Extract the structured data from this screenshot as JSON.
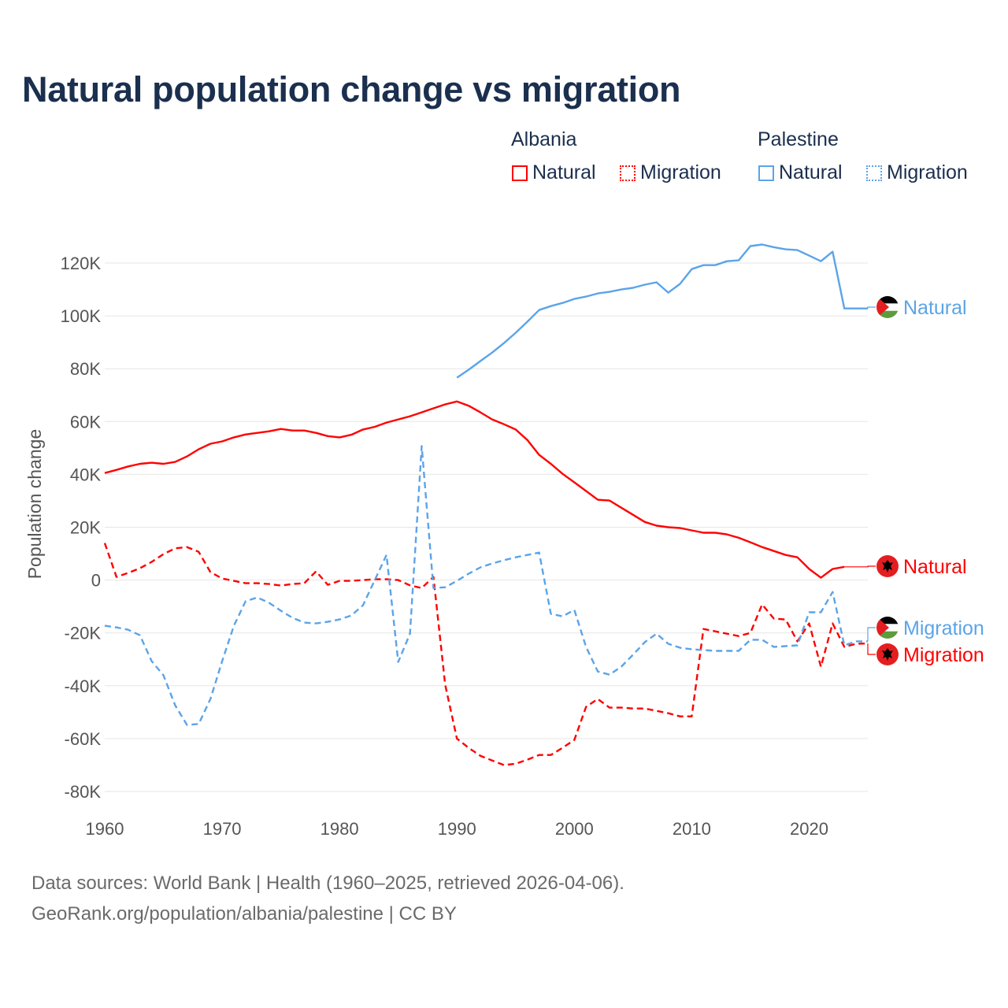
{
  "chart_data": {
    "type": "line",
    "title": "Natural population change vs migration",
    "ylabel": "Population change",
    "xlabel": "",
    "xlim": [
      1960,
      2025
    ],
    "ylim": [
      -80000,
      130000
    ],
    "x_ticks": [
      "1960",
      "1970",
      "1980",
      "1990",
      "2000",
      "2010",
      "2020"
    ],
    "y_ticks": [
      {
        "value": 120000,
        "label": "120K"
      },
      {
        "value": 100000,
        "label": "100K"
      },
      {
        "value": 80000,
        "label": "80K"
      },
      {
        "value": 60000,
        "label": "60K"
      },
      {
        "value": 40000,
        "label": "40K"
      },
      {
        "value": 20000,
        "label": "20K"
      },
      {
        "value": 0,
        "label": "0"
      },
      {
        "value": -20000,
        "label": "-20K"
      },
      {
        "value": -40000,
        "label": "-40K"
      },
      {
        "value": -60000,
        "label": "-60K"
      },
      {
        "value": -80000,
        "label": "-80K"
      }
    ],
    "grid": true,
    "legend": {
      "placement": "top-right",
      "groups": [
        {
          "country": "Albania",
          "items": [
            "Natural",
            "Migration"
          ]
        },
        {
          "country": "Palestine",
          "items": [
            "Natural",
            "Migration"
          ]
        }
      ]
    },
    "x_start": 1960,
    "series": [
      {
        "name": "Albania Natural",
        "country": "Albania",
        "label": "Natural",
        "color": "#ff0000",
        "dash": false,
        "values": [
          40500,
          41700,
          43000,
          44000,
          44400,
          44000,
          44700,
          46800,
          49500,
          51600,
          52500,
          54000,
          55100,
          55700,
          56300,
          57200,
          56600,
          56600,
          55700,
          54500,
          54000,
          55000,
          57000,
          58000,
          59600,
          60800,
          62000,
          63500,
          65000,
          66500,
          67600,
          66000,
          63500,
          60800,
          59000,
          57000,
          53000,
          47400,
          44000,
          40200,
          37000,
          33700,
          30400,
          30100,
          27400,
          24700,
          22000,
          20600,
          20000,
          19700,
          18800,
          17900,
          17900,
          17300,
          16000,
          14300,
          12500,
          11000,
          9500,
          8600,
          4200,
          900,
          4200,
          5000,
          null,
          null
        ]
      },
      {
        "name": "Albania Migration",
        "country": "Albania",
        "label": "Migration",
        "color": "#ff0000",
        "dash": true,
        "values": [
          14000,
          1200,
          2700,
          4500,
          6900,
          9800,
          12000,
          12500,
          10700,
          3000,
          600,
          -300,
          -1200,
          -1200,
          -1500,
          -2100,
          -1500,
          -1200,
          3300,
          -1800,
          -300,
          -300,
          0,
          300,
          300,
          0,
          -2000,
          -3000,
          1200,
          -39600,
          -60000,
          -63500,
          -66500,
          -68300,
          -70000,
          -69500,
          -68000,
          -66200,
          -66200,
          -63500,
          -60500,
          -48000,
          -45000,
          -48300,
          -48300,
          -48600,
          -48600,
          -49500,
          -50400,
          -51600,
          -51600,
          -18500,
          -19400,
          -20300,
          -21200,
          -20000,
          -9200,
          -14600,
          -14900,
          -23200,
          -16400,
          -32800,
          -16400,
          -25300,
          -24100,
          -24000
        ]
      },
      {
        "name": "Palestine Natural",
        "country": "Palestine",
        "label": "Natural",
        "color": "#5ba4e8",
        "dash": false,
        "values": [
          null,
          null,
          null,
          null,
          null,
          null,
          null,
          null,
          null,
          null,
          null,
          null,
          null,
          null,
          null,
          null,
          null,
          null,
          null,
          null,
          null,
          null,
          null,
          null,
          null,
          null,
          null,
          null,
          null,
          null,
          76600,
          79600,
          82900,
          86100,
          89700,
          93600,
          97800,
          102200,
          103700,
          104900,
          106400,
          107300,
          108500,
          109100,
          110000,
          110600,
          111800,
          112700,
          108800,
          112100,
          117700,
          119200,
          119200,
          120700,
          121000,
          126400,
          127000,
          126000,
          125200,
          124900,
          122800,
          120700,
          124300,
          102800,
          102800,
          102800
        ]
      },
      {
        "name": "Palestine Migration",
        "country": "Palestine",
        "label": "Migration",
        "color": "#5ba4e8",
        "dash": true,
        "values": [
          -17300,
          -17900,
          -18800,
          -20900,
          -30700,
          -36000,
          -47400,
          -54800,
          -54500,
          -45000,
          -30700,
          -17300,
          -8000,
          -6600,
          -8600,
          -11600,
          -14300,
          -16100,
          -16400,
          -15800,
          -14900,
          -13400,
          -9500,
          0,
          9500,
          -31000,
          -20300,
          50700,
          -3000,
          -2700,
          -300,
          2400,
          4800,
          6300,
          7500,
          8600,
          9500,
          10400,
          -12800,
          -13700,
          -11300,
          -25300,
          -34600,
          -35800,
          -32800,
          -28300,
          -23500,
          -20300,
          -24100,
          -25600,
          -26200,
          -26500,
          -26800,
          -26800,
          -26800,
          -22600,
          -22600,
          -25300,
          -25000,
          -24700,
          -12200,
          -12200,
          -4500,
          -24700,
          -23200,
          -23200
        ]
      }
    ],
    "end_labels": [
      "Natural",
      "Natural",
      "Migration",
      "Migration"
    ]
  },
  "footer": {
    "line1": "Data sources: World Bank | Health (1960–2025, retrieved 2026-04-06).",
    "line2": "GeoRank.org/population/albania/palestine | CC BY"
  }
}
